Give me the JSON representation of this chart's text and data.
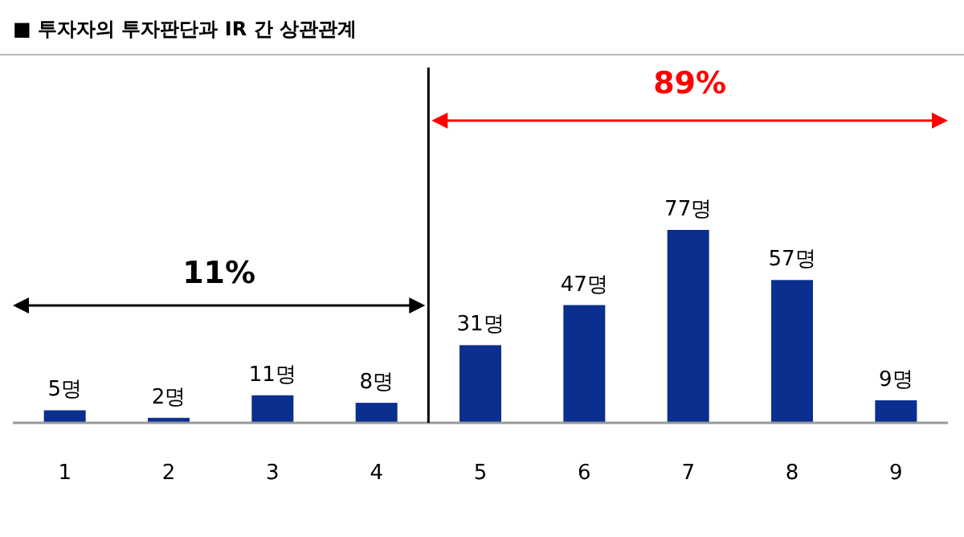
{
  "chart_data": {
    "type": "bar",
    "title": "■ 투자자의 투자판단과 IR 간 상관관계",
    "x": [
      1,
      2,
      3,
      4,
      5,
      6,
      7,
      8,
      9
    ],
    "xlim": [
      0.5,
      9.5
    ],
    "xticks": [
      1,
      2,
      3,
      4,
      5,
      6,
      7,
      8,
      9
    ],
    "values": [
      5,
      2,
      11,
      8,
      31,
      47,
      77,
      57,
      9
    ],
    "color": "#0a2f8f",
    "value_labels": [
      "5명",
      "2명",
      "11명",
      "8명",
      "31명",
      "47명",
      "77명",
      "57명",
      "9명"
    ],
    "tick_labels": "x",
    "ref_lines": [
      {
        "axis": "x",
        "value": 4.5,
        "color": "#000000"
      }
    ],
    "annotations": [
      "11%",
      "89%"
    ]
  }
}
